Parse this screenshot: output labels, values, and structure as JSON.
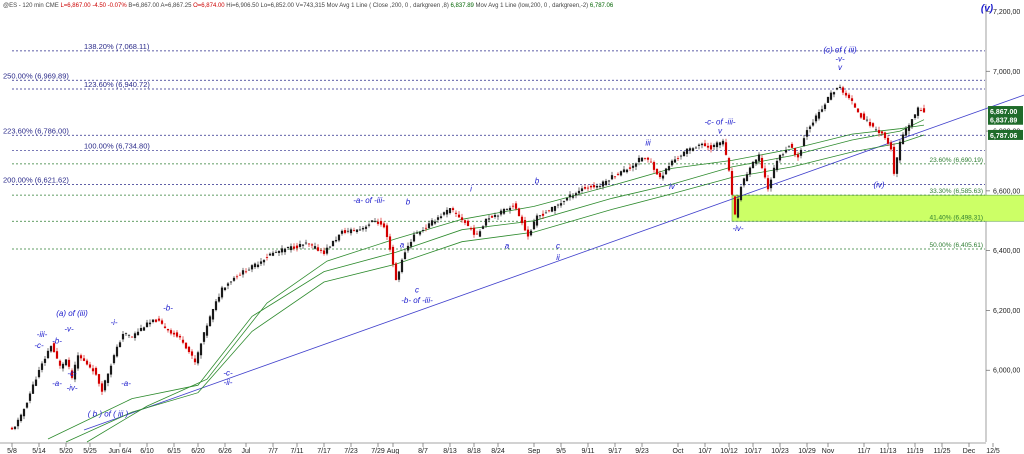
{
  "header": {
    "parts": [
      {
        "text": "@ES - 120 min  CME",
        "color": "#444444"
      },
      {
        "text": "L=6,867.00",
        "color": "#cc0000"
      },
      {
        "text": "-4.50",
        "color": "#cc0000"
      },
      {
        "text": "-0.07%",
        "color": "#cc0000"
      },
      {
        "text": "B=6,867.00  A=6,867.25",
        "color": "#444444"
      },
      {
        "text": "O=6,874.00",
        "color": "#cc0000"
      },
      {
        "text": "Hi=6,906.50  Lo=6,852.00  V=743,315",
        "color": "#444444"
      },
      {
        "text": "Mov Avg 1 Line ( Close ,200, 0 , darkgreen ,8)",
        "color": "#444444"
      },
      {
        "text": "6,837.89",
        "color": "#006400"
      },
      {
        "text": "Mov Avg 1 Line (low,200, 0 , darkgreen,-2)",
        "color": "#444444"
      },
      {
        "text": "6,787.06",
        "color": "#006400"
      }
    ]
  },
  "colors": {
    "up_candle": "#1a1a1a",
    "down_candle": "#d40000",
    "wave_label": "#1a1acc",
    "fib_line": "#2a2a8a",
    "fib_lower_line": "#2e7d32",
    "moving_average": "#2e8b2e",
    "trendline": "#4040cc",
    "target_zone": "#ccff66",
    "price_tag_bg": "#1f6b2a",
    "grid": "#dddddd"
  },
  "chart_data": {
    "type": "candlestick",
    "title": "@ES - 120 min",
    "y_axis": {
      "range": [
        5760,
        7225
      ],
      "position": "right",
      "tick_labels": [
        "7,200,00",
        "7,000,00",
        "6,800,00",
        "6,600,00",
        "6,400,00",
        "6,200,00",
        "6,000,00"
      ],
      "tick_values": [
        7200,
        7000,
        6800,
        6600,
        6400,
        6200,
        6000
      ]
    },
    "x_axis": {
      "tick_labels": [
        "5/8",
        "5/14",
        "5/20",
        "5/25",
        "Jun 6/4",
        "6/10",
        "6/15",
        "6/20",
        "6/26",
        "Jul",
        "7/7",
        "7/11",
        "7/17",
        "7/23",
        "7/29",
        "Aug",
        "8/7",
        "8/13",
        "8/18",
        "8/24",
        "Sep",
        "9/5",
        "9/11",
        "9/17",
        "9/23",
        "Oct",
        "10/7",
        "10/12",
        "10/17",
        "10/23",
        "10/29",
        "Nov",
        "11/7",
        "11/13",
        "11/19",
        "11/25",
        "Dec",
        "12/5"
      ],
      "tick_positions": [
        0,
        9,
        18,
        26,
        36,
        45,
        54,
        62,
        71,
        78,
        87,
        95,
        104,
        113,
        122,
        127,
        137,
        146,
        154,
        162,
        174,
        183,
        192,
        201,
        210,
        222,
        231,
        239,
        247,
        256,
        265,
        272,
        284,
        292,
        301,
        310,
        319,
        327
      ]
    },
    "ohlc_anchors": [
      {
        "i": 0,
        "c": 5800
      },
      {
        "i": 3,
        "c": 5845
      },
      {
        "i": 8,
        "c": 5975
      },
      {
        "i": 13,
        "c": 6085
      },
      {
        "i": 16,
        "c": 6012
      },
      {
        "i": 18,
        "c": 6035
      },
      {
        "i": 20,
        "c": 5975
      },
      {
        "i": 22,
        "c": 6048
      },
      {
        "i": 27,
        "c": 6003
      },
      {
        "i": 30,
        "c": 5935
      },
      {
        "i": 34,
        "c": 6048
      },
      {
        "i": 37,
        "c": 6123
      },
      {
        "i": 40,
        "c": 6112
      },
      {
        "i": 44,
        "c": 6148
      },
      {
        "i": 48,
        "c": 6168
      },
      {
        "i": 53,
        "c": 6128
      },
      {
        "i": 57,
        "c": 6098
      },
      {
        "i": 61,
        "c": 6025
      },
      {
        "i": 65,
        "c": 6152
      },
      {
        "i": 70,
        "c": 6275
      },
      {
        "i": 75,
        "c": 6318
      },
      {
        "i": 80,
        "c": 6345
      },
      {
        "i": 86,
        "c": 6388
      },
      {
        "i": 92,
        "c": 6408
      },
      {
        "i": 98,
        "c": 6422
      },
      {
        "i": 104,
        "c": 6395
      },
      {
        "i": 110,
        "c": 6462
      },
      {
        "i": 116,
        "c": 6472
      },
      {
        "i": 121,
        "c": 6502
      },
      {
        "i": 124,
        "c": 6478
      },
      {
        "i": 126,
        "c": 6408
      },
      {
        "i": 128,
        "c": 6302
      },
      {
        "i": 131,
        "c": 6398
      },
      {
        "i": 134,
        "c": 6452
      },
      {
        "i": 138,
        "c": 6478
      },
      {
        "i": 142,
        "c": 6512
      },
      {
        "i": 146,
        "c": 6538
      },
      {
        "i": 150,
        "c": 6505
      },
      {
        "i": 155,
        "c": 6448
      },
      {
        "i": 158,
        "c": 6508
      },
      {
        "i": 163,
        "c": 6528
      },
      {
        "i": 167,
        "c": 6555
      },
      {
        "i": 170,
        "c": 6498
      },
      {
        "i": 172,
        "c": 6448
      },
      {
        "i": 175,
        "c": 6512
      },
      {
        "i": 180,
        "c": 6540
      },
      {
        "i": 185,
        "c": 6575
      },
      {
        "i": 190,
        "c": 6608
      },
      {
        "i": 196,
        "c": 6618
      },
      {
        "i": 200,
        "c": 6648
      },
      {
        "i": 206,
        "c": 6678
      },
      {
        "i": 210,
        "c": 6712
      },
      {
        "i": 213,
        "c": 6695
      },
      {
        "i": 216,
        "c": 6642
      },
      {
        "i": 220,
        "c": 6698
      },
      {
        "i": 225,
        "c": 6735
      },
      {
        "i": 229,
        "c": 6755
      },
      {
        "i": 233,
        "c": 6745
      },
      {
        "i": 237,
        "c": 6768
      },
      {
        "i": 239,
        "c": 6662
      },
      {
        "i": 241,
        "c": 6515
      },
      {
        "i": 243,
        "c": 6618
      },
      {
        "i": 246,
        "c": 6678
      },
      {
        "i": 249,
        "c": 6715
      },
      {
        "i": 252,
        "c": 6608
      },
      {
        "i": 255,
        "c": 6705
      },
      {
        "i": 259,
        "c": 6752
      },
      {
        "i": 262,
        "c": 6712
      },
      {
        "i": 265,
        "c": 6808
      },
      {
        "i": 270,
        "c": 6872
      },
      {
        "i": 273,
        "c": 6928
      },
      {
        "i": 276,
        "c": 6945
      },
      {
        "i": 280,
        "c": 6895
      },
      {
        "i": 283,
        "c": 6852
      },
      {
        "i": 287,
        "c": 6812
      },
      {
        "i": 290,
        "c": 6792
      },
      {
        "i": 293,
        "c": 6742
      },
      {
        "i": 294,
        "c": 6652
      },
      {
        "i": 296,
        "c": 6762
      },
      {
        "i": 299,
        "c": 6822
      },
      {
        "i": 302,
        "c": 6872
      },
      {
        "i": 304,
        "c": 6867
      }
    ],
    "moving_averages": [
      {
        "name": "Mov Avg 1 Line ( Close ,200, 0 , darkgreen ,8)",
        "last_value": 6837.89,
        "points": [
          [
            12,
            5770
          ],
          [
            40,
            5905
          ],
          [
            62,
            5950
          ],
          [
            80,
            6180
          ],
          [
            104,
            6330
          ],
          [
            128,
            6395
          ],
          [
            150,
            6470
          ],
          [
            174,
            6500
          ],
          [
            200,
            6575
          ],
          [
            220,
            6622
          ],
          [
            240,
            6680
          ],
          [
            260,
            6718
          ],
          [
            280,
            6770
          ],
          [
            296,
            6800
          ],
          [
            304,
            6838
          ]
        ]
      },
      {
        "name": "Mov Avg 1 Line (low,200, 0 , darkgreen,-2)",
        "last_value": 6787.06,
        "points": [
          [
            18,
            5760
          ],
          [
            40,
            5860
          ],
          [
            62,
            5925
          ],
          [
            80,
            6130
          ],
          [
            104,
            6295
          ],
          [
            128,
            6355
          ],
          [
            150,
            6430
          ],
          [
            174,
            6462
          ],
          [
            200,
            6538
          ],
          [
            220,
            6590
          ],
          [
            240,
            6645
          ],
          [
            260,
            6680
          ],
          [
            280,
            6730
          ],
          [
            296,
            6760
          ],
          [
            304,
            6787
          ]
        ]
      },
      {
        "name": "",
        "points": [
          [
            25,
            5760
          ],
          [
            45,
            5880
          ],
          [
            65,
            5970
          ],
          [
            85,
            6225
          ],
          [
            105,
            6365
          ],
          [
            128,
            6440
          ],
          [
            150,
            6505
          ],
          [
            174,
            6548
          ],
          [
            200,
            6618
          ],
          [
            220,
            6675
          ],
          [
            240,
            6702
          ],
          [
            260,
            6740
          ],
          [
            280,
            6790
          ],
          [
            296,
            6808
          ],
          [
            304,
            6820
          ]
        ]
      }
    ],
    "trendline": {
      "from": [
        24,
        5800
      ],
      "to": [
        340,
        6930
      ]
    },
    "fib_levels": [
      {
        "label": "138.20% (7,068.11)",
        "value": 7068.11,
        "label_pos": "left-indent",
        "color": "dark"
      },
      {
        "label": "250.00% (6,969.89)",
        "value": 6969.89,
        "label_pos": "left",
        "color": "dark"
      },
      {
        "label": "123.60% (6,940.72)",
        "value": 6940.72,
        "label_pos": "left-indent",
        "color": "dark"
      },
      {
        "label": "223.60% (6,786.00)",
        "value": 6786.0,
        "label_pos": "left",
        "color": "dark"
      },
      {
        "label": "100.00% (6,734.80)",
        "value": 6734.8,
        "label_pos": "left-indent",
        "color": "dark"
      },
      {
        "label": "200.00% (6,621.62)",
        "value": 6621.62,
        "label_pos": "left",
        "color": "dark"
      },
      {
        "label": "23.60% (6,690.19)",
        "value": 6690.19,
        "label_pos": "right-zone",
        "color": "green"
      },
      {
        "label": "33.30% (6,585.63)",
        "value": 6585.63,
        "label_pos": "right-zone",
        "color": "green"
      },
      {
        "label": "41.40% (6,498.31)",
        "value": 6498.31,
        "label_pos": "right-zone",
        "color": "green"
      },
      {
        "label": "50.00% (6,405.61)",
        "value": 6405.61,
        "label_pos": "right-zone",
        "color": "green"
      }
    ],
    "target_zone": {
      "x_from": 240,
      "x_to": 350,
      "y_from": 6498.31,
      "y_to": 6585.63
    },
    "price_tags": [
      {
        "text": "6,867.00",
        "value": 6867.0
      },
      {
        "text": "6,837.89",
        "value": 6837.89
      },
      {
        "text": "6,787.06",
        "value": 6787.06
      }
    ],
    "wave_labels": [
      {
        "text": "(v)",
        "x": 325,
        "y": 7200,
        "style": "bold-italic",
        "size": 10
      },
      {
        "text": "(c) of ( iii)",
        "x": 276,
        "y": 7062,
        "style": "italic",
        "size": 8
      },
      {
        "text": "-v-",
        "x": 276,
        "y": 7032,
        "style": "italic",
        "size": 8
      },
      {
        "text": "v",
        "x": 276,
        "y": 7005,
        "style": "italic",
        "size": 8
      },
      {
        "text": "-c- of -iii-",
        "x": 236,
        "y": 6822,
        "style": "italic",
        "size": 8
      },
      {
        "text": "v",
        "x": 236,
        "y": 6792,
        "style": "italic",
        "size": 8
      },
      {
        "text": "iii",
        "x": 212,
        "y": 6752,
        "style": "italic",
        "size": 8
      },
      {
        "text": "iv",
        "x": 220,
        "y": 6606,
        "style": "italic",
        "size": 8
      },
      {
        "text": "-iv-",
        "x": 242,
        "y": 6465,
        "style": "italic",
        "size": 8
      },
      {
        "text": "(iv)",
        "x": 289,
        "y": 6612,
        "style": "italic",
        "size": 8
      },
      {
        "text": "b",
        "x": 175,
        "y": 6625,
        "style": "italic",
        "size": 8
      },
      {
        "text": "i",
        "x": 153,
        "y": 6598,
        "style": "italic",
        "size": 8
      },
      {
        "text": "-a- of -iii-",
        "x": 119,
        "y": 6560,
        "style": "italic",
        "size": 8
      },
      {
        "text": "b",
        "x": 132,
        "y": 6555,
        "style": "italic",
        "size": 8
      },
      {
        "text": "a",
        "x": 130,
        "y": 6410,
        "style": "italic",
        "size": 8
      },
      {
        "text": "c",
        "x": 135,
        "y": 6260,
        "style": "italic",
        "size": 8
      },
      {
        "text": "-b- of -iii-",
        "x": 135,
        "y": 6225,
        "style": "italic",
        "size": 8
      },
      {
        "text": "a",
        "x": 165,
        "y": 6408,
        "style": "italic",
        "size": 8
      },
      {
        "text": "c",
        "x": 182,
        "y": 6408,
        "style": "italic",
        "size": 8
      },
      {
        "text": "ii",
        "x": 182,
        "y": 6368,
        "style": "italic",
        "size": 8
      },
      {
        "text": "-b-",
        "x": 52,
        "y": 6200,
        "style": "italic",
        "size": 8
      },
      {
        "text": "-i-",
        "x": 34,
        "y": 6152,
        "style": "italic",
        "size": 8
      },
      {
        "text": "-c-",
        "x": 72,
        "y": 5982,
        "style": "italic",
        "size": 8
      },
      {
        "text": "-ii-",
        "x": 72,
        "y": 5950,
        "style": "italic",
        "size": 8
      },
      {
        "text": "-a-",
        "x": 38,
        "y": 5948,
        "style": "italic",
        "size": 8
      },
      {
        "text": "(a) of (iii)",
        "x": 20,
        "y": 6182,
        "style": "italic",
        "size": 8
      },
      {
        "text": "-v-",
        "x": 19,
        "y": 6130,
        "style": "italic",
        "size": 8
      },
      {
        "text": "-iii-",
        "x": 10,
        "y": 6112,
        "style": "italic",
        "size": 8
      },
      {
        "text": "-b-",
        "x": 15,
        "y": 6090,
        "style": "italic",
        "size": 8
      },
      {
        "text": "-c-",
        "x": 9,
        "y": 6075,
        "style": "italic",
        "size": 8
      },
      {
        "text": "-c-",
        "x": 20,
        "y": 5980,
        "style": "italic",
        "size": 8
      },
      {
        "text": "-a-",
        "x": 15,
        "y": 5948,
        "style": "italic",
        "size": 8
      },
      {
        "text": "-iv-",
        "x": 20,
        "y": 5932,
        "style": "italic",
        "size": 8
      },
      {
        "text": "( b ) of ( iii )",
        "x": 32,
        "y": 5846,
        "style": "italic",
        "size": 8
      }
    ],
    "grid": false,
    "legend": "top-left header"
  }
}
